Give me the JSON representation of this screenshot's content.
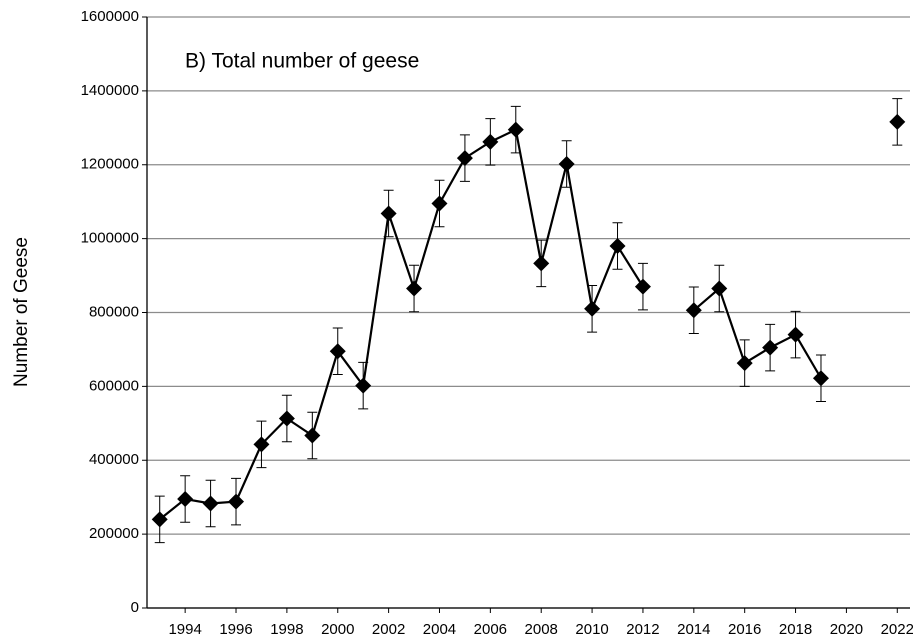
{
  "chart_data": {
    "type": "line",
    "title": "B) Total number of geese",
    "y_label": "Number of Geese",
    "x": [
      1993,
      1994,
      1995,
      1996,
      1997,
      1998,
      1999,
      2000,
      2001,
      2002,
      2003,
      2004,
      2005,
      2006,
      2007,
      2008,
      2009,
      2010,
      2011,
      2012,
      2013,
      2014,
      2015,
      2016,
      2017,
      2018,
      2019,
      2020,
      2021,
      2022
    ],
    "values": [
      240000,
      295000,
      283000,
      288000,
      443000,
      513000,
      467000,
      695000,
      602000,
      1068000,
      865000,
      1095000,
      1218000,
      1262000,
      1295000,
      933000,
      1202000,
      810000,
      980000,
      870000,
      null,
      806000,
      865000,
      663000,
      705000,
      740000,
      622000,
      null,
      null,
      1316000
    ],
    "errors": [
      63000,
      63000,
      63000,
      63000,
      63000,
      63000,
      63000,
      63000,
      63000,
      63000,
      63000,
      63000,
      63000,
      63000,
      63000,
      63000,
      63000,
      63000,
      63000,
      63000,
      null,
      63000,
      63000,
      63000,
      63000,
      63000,
      63000,
      null,
      null,
      63000
    ],
    "color": "#000000",
    "xlim": [
      1992.5,
      2022.5
    ],
    "xticks": [
      1994,
      1996,
      1998,
      2000,
      2002,
      2004,
      2006,
      2008,
      2010,
      2012,
      2014,
      2016,
      2018,
      2020,
      2022
    ],
    "ylim": [
      0,
      1600000
    ],
    "yticks": [
      0,
      200000,
      400000,
      600000,
      800000,
      1000000,
      1200000,
      1400000,
      1600000
    ],
    "grid": true
  }
}
